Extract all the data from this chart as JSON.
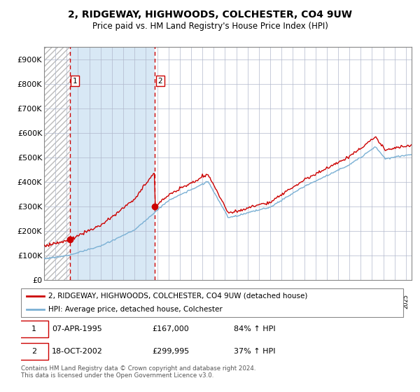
{
  "title": "2, RIDGEWAY, HIGHWOODS, COLCHESTER, CO4 9UW",
  "subtitle": "Price paid vs. HM Land Registry's House Price Index (HPI)",
  "title_fontsize": 10,
  "subtitle_fontsize": 8.5,
  "ylabel_ticks": [
    "£0",
    "£100K",
    "£200K",
    "£300K",
    "£400K",
    "£500K",
    "£600K",
    "£700K",
    "£800K",
    "£900K"
  ],
  "ytick_values": [
    0,
    100000,
    200000,
    300000,
    400000,
    500000,
    600000,
    700000,
    800000,
    900000
  ],
  "ylim": [
    0,
    950000
  ],
  "sale1_date_num": 1995.27,
  "sale1_price": 167000,
  "sale2_date_num": 2002.8,
  "sale2_price": 299995,
  "line_color_red": "#cc0000",
  "line_color_blue": "#7ab0d4",
  "bg_shaded_color": "#d8e8f5",
  "grid_color": "#b0b8cc",
  "dashed_line_color": "#cc0000",
  "legend_label_red": "2, RIDGEWAY, HIGHWOODS, COLCHESTER, CO4 9UW (detached house)",
  "legend_label_blue": "HPI: Average price, detached house, Colchester",
  "footer_text": "Contains HM Land Registry data © Crown copyright and database right 2024.\nThis data is licensed under the Open Government Licence v3.0.",
  "xstart": 1993.0,
  "xend": 2025.5
}
